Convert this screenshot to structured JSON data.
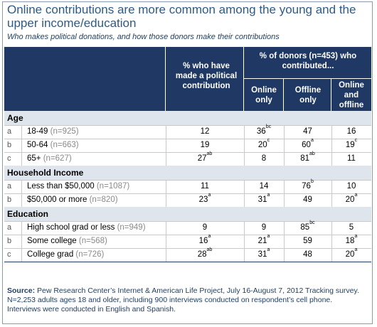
{
  "title": "Online contributions are more common among the young and the upper income/education",
  "subtitle": "Who makes political donations, and how those donors make their contributions",
  "header": {
    "col_made": "% who have made a political contribution",
    "col_group": "% of donors (n=453) who contributed...",
    "col_online": "Online only",
    "col_offline": "Offline only",
    "col_both": "Online and offline"
  },
  "sections": [
    {
      "name": "Age",
      "rows": [
        {
          "letter": "a",
          "label": "18-49",
          "n": "(n=925)",
          "made": "12",
          "made_sup": "",
          "online": "36",
          "online_sup": "bc",
          "offline": "47",
          "offline_sup": "",
          "both": "16",
          "both_sup": ""
        },
        {
          "letter": "b",
          "label": "50-64",
          "n": "(n=663)",
          "made": "19",
          "made_sup": "",
          "online": "20",
          "online_sup": "c",
          "offline": "60",
          "offline_sup": "a",
          "both": "19",
          "both_sup": "c"
        },
        {
          "letter": "c",
          "label": "65+",
          "n": "(n=627)",
          "made": "27",
          "made_sup": "ab",
          "online": "8",
          "online_sup": "",
          "offline": "81",
          "offline_sup": "ab",
          "both": "11",
          "both_sup": ""
        }
      ]
    },
    {
      "name": "Household Income",
      "rows": [
        {
          "letter": "a",
          "label": "Less than $50,000",
          "n": "(n=1087)",
          "made": "11",
          "made_sup": "",
          "online": "14",
          "online_sup": "",
          "offline": "76",
          "offline_sup": "b",
          "both": "10",
          "both_sup": ""
        },
        {
          "letter": "b",
          "label": "$50,000 or more",
          "n": "(n=820)",
          "made": "23",
          "made_sup": "a",
          "online": "31",
          "online_sup": "a",
          "offline": "49",
          "offline_sup": "",
          "both": "20",
          "both_sup": "a"
        }
      ]
    },
    {
      "name": "Education",
      "rows": [
        {
          "letter": "a",
          "label": "High school grad or less",
          "n": "(n=949)",
          "made": "9",
          "made_sup": "",
          "online": "9",
          "online_sup": "",
          "offline": "85",
          "offline_sup": "bc",
          "both": "5",
          "both_sup": ""
        },
        {
          "letter": "b",
          "label": "Some college",
          "n": "(n=568)",
          "made": "16",
          "made_sup": "a",
          "online": "21",
          "online_sup": "a",
          "offline": "59",
          "offline_sup": "",
          "both": "18",
          "both_sup": "a"
        },
        {
          "letter": "c",
          "label": "College grad",
          "n": "(n=726)",
          "made": "28",
          "made_sup": "ab",
          "online": "31",
          "online_sup": "a",
          "offline": "48",
          "offline_sup": "",
          "both": "20",
          "both_sup": "a"
        }
      ]
    }
  ],
  "source_label": "Source:",
  "source_text": " Pew Research Center’s Internet & American Life Project, July 16-August 7, 2012 Tracking survey. N=2,253 adults ages 18 and older, including 900 interviews conducted on respondent’s cell phone.  Interviews were conducted in English and Spanish."
}
